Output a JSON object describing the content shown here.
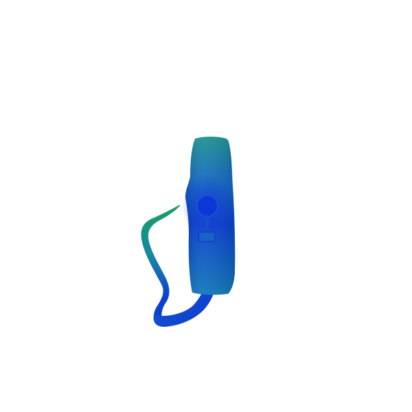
{
  "image": {
    "subject": "",
    "background_color": "#ffffff",
    "colors": {
      "bag_top": "#1e9290",
      "bag_mid": "#1466c4",
      "bag_core": "#0a3fd0",
      "bag_bottom": "#1178b8",
      "strap_green": "#1aa05a",
      "strap_teal": "#1686a8",
      "strap_blue": "#0b3ed2",
      "ring": "#0a37d6"
    }
  }
}
